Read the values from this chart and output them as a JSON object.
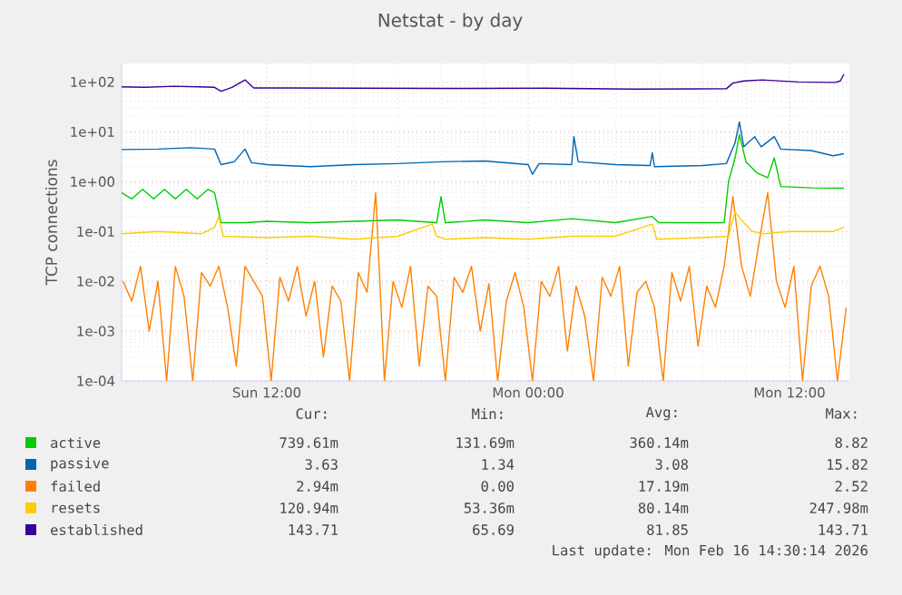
{
  "chart_data": {
    "type": "line",
    "title": "Netstat - by day",
    "ylabel": "TCP connections",
    "log": "y",
    "grid": true,
    "legend": "bottom",
    "marker": "none",
    "line_style": "solid",
    "xlim": [
      "2026-02-15T05:20",
      "2026-02-16T14:45"
    ],
    "xticks": [
      {
        "value": "2026-02-15T12:00",
        "label": "Sun 12:00"
      },
      {
        "value": "2026-02-16T00:00",
        "label": "Mon 00:00"
      },
      {
        "value": "2026-02-16T12:00",
        "label": "Mon 12:00"
      }
    ],
    "ylim": [
      0.0001,
      235
    ],
    "yticks": [
      {
        "value": 0.0001,
        "label": "1e-04"
      },
      {
        "value": 0.001,
        "label": "1e-03"
      },
      {
        "value": 0.01,
        "label": "1e-02"
      },
      {
        "value": 0.1,
        "label": "1e-01"
      },
      {
        "value": 1,
        "label": "1e+00"
      },
      {
        "value": 10,
        "label": "1e+01"
      },
      {
        "value": 100,
        "label": "1e+02"
      }
    ],
    "series": [
      {
        "name": "active",
        "color": "#00cc00",
        "x": [
          "2026-02-15T05:20",
          "2026-02-15T05:48",
          "2026-02-15T06:18",
          "2026-02-15T06:48",
          "2026-02-15T07:18",
          "2026-02-15T07:48",
          "2026-02-15T08:18",
          "2026-02-15T08:48",
          "2026-02-15T09:18",
          "2026-02-15T09:36",
          "2026-02-15T09:54",
          "2026-02-15T11:00",
          "2026-02-15T12:00",
          "2026-02-15T14:00",
          "2026-02-15T16:00",
          "2026-02-15T18:00",
          "2026-02-15T19:48",
          "2026-02-15T20:00",
          "2026-02-15T20:12",
          "2026-02-15T22:00",
          "2026-02-16T00:00",
          "2026-02-16T02:00",
          "2026-02-16T04:00",
          "2026-02-16T05:42",
          "2026-02-16T06:00",
          "2026-02-16T08:00",
          "2026-02-16T09:00",
          "2026-02-16T09:12",
          "2026-02-16T09:30",
          "2026-02-16T09:42",
          "2026-02-16T10:00",
          "2026-02-16T10:30",
          "2026-02-16T11:00",
          "2026-02-16T11:18",
          "2026-02-16T11:36",
          "2026-02-16T13:00",
          "2026-02-16T14:30"
        ],
        "values": [
          0.6,
          0.45,
          0.7,
          0.45,
          0.7,
          0.45,
          0.7,
          0.45,
          0.7,
          0.6,
          0.15,
          0.15,
          0.16,
          0.15,
          0.16,
          0.17,
          0.15,
          0.5,
          0.15,
          0.17,
          0.15,
          0.18,
          0.15,
          0.2,
          0.15,
          0.15,
          0.15,
          1.0,
          3.0,
          8.82,
          2.5,
          1.5,
          1.2,
          3.0,
          0.8,
          0.75,
          0.74
        ]
      },
      {
        "name": "passive",
        "color": "#0066b3",
        "x": [
          "2026-02-15T05:20",
          "2026-02-15T07:00",
          "2026-02-15T08:30",
          "2026-02-15T09:36",
          "2026-02-15T09:54",
          "2026-02-15T10:30",
          "2026-02-15T11:00",
          "2026-02-15T11:18",
          "2026-02-15T12:00",
          "2026-02-15T14:00",
          "2026-02-15T16:00",
          "2026-02-15T18:00",
          "2026-02-15T20:00",
          "2026-02-15T22:00",
          "2026-02-16T00:00",
          "2026-02-16T00:12",
          "2026-02-16T00:30",
          "2026-02-16T02:00",
          "2026-02-16T02:06",
          "2026-02-16T02:18",
          "2026-02-16T04:00",
          "2026-02-16T05:36",
          "2026-02-16T05:42",
          "2026-02-16T05:48",
          "2026-02-16T08:00",
          "2026-02-16T09:06",
          "2026-02-16T09:30",
          "2026-02-16T09:42",
          "2026-02-16T09:54",
          "2026-02-16T10:24",
          "2026-02-16T10:42",
          "2026-02-16T11:18",
          "2026-02-16T11:36",
          "2026-02-16T13:00",
          "2026-02-16T14:00",
          "2026-02-16T14:30"
        ],
        "values": [
          4.4,
          4.5,
          4.8,
          4.5,
          2.2,
          2.5,
          4.5,
          2.4,
          2.2,
          2.0,
          2.2,
          2.3,
          2.5,
          2.6,
          2.2,
          1.4,
          2.3,
          2.2,
          8.0,
          2.5,
          2.2,
          2.1,
          3.8,
          2.0,
          2.1,
          2.3,
          6,
          15.82,
          5,
          8,
          5,
          8,
          4.5,
          4.2,
          3.3,
          3.63
        ]
      },
      {
        "name": "failed",
        "color": "#ff8000",
        "x": [
          "2026-02-15T05:24",
          "2026-02-15T05:48",
          "2026-02-15T06:12",
          "2026-02-15T06:36",
          "2026-02-15T07:00",
          "2026-02-15T07:24",
          "2026-02-15T07:48",
          "2026-02-15T08:12",
          "2026-02-15T08:36",
          "2026-02-15T09:00",
          "2026-02-15T09:24",
          "2026-02-15T09:48",
          "2026-02-15T10:12",
          "2026-02-15T10:36",
          "2026-02-15T11:00",
          "2026-02-15T11:24",
          "2026-02-15T11:48",
          "2026-02-15T12:12",
          "2026-02-15T12:36",
          "2026-02-15T13:00",
          "2026-02-15T13:24",
          "2026-02-15T13:48",
          "2026-02-15T14:12",
          "2026-02-15T14:36",
          "2026-02-15T15:00",
          "2026-02-15T15:24",
          "2026-02-15T15:48",
          "2026-02-15T16:12",
          "2026-02-15T16:36",
          "2026-02-15T17:00",
          "2026-02-15T17:24",
          "2026-02-15T17:48",
          "2026-02-15T18:12",
          "2026-02-15T18:36",
          "2026-02-15T19:00",
          "2026-02-15T19:24",
          "2026-02-15T19:48",
          "2026-02-15T20:12",
          "2026-02-15T20:36",
          "2026-02-15T21:00",
          "2026-02-15T21:24",
          "2026-02-15T21:48",
          "2026-02-15T22:12",
          "2026-02-15T22:36",
          "2026-02-15T23:00",
          "2026-02-15T23:24",
          "2026-02-15T23:48",
          "2026-02-16T00:12",
          "2026-02-16T00:36",
          "2026-02-16T01:00",
          "2026-02-16T01:24",
          "2026-02-16T01:48",
          "2026-02-16T02:12",
          "2026-02-16T02:36",
          "2026-02-16T03:00",
          "2026-02-16T03:24",
          "2026-02-16T03:48",
          "2026-02-16T04:12",
          "2026-02-16T04:36",
          "2026-02-16T05:00",
          "2026-02-16T05:24",
          "2026-02-16T05:48",
          "2026-02-16T06:12",
          "2026-02-16T06:36",
          "2026-02-16T07:00",
          "2026-02-16T07:24",
          "2026-02-16T07:48",
          "2026-02-16T08:12",
          "2026-02-16T08:36",
          "2026-02-16T09:00",
          "2026-02-16T09:24",
          "2026-02-16T09:48",
          "2026-02-16T10:12",
          "2026-02-16T10:36",
          "2026-02-16T11:00",
          "2026-02-16T11:24",
          "2026-02-16T11:48",
          "2026-02-16T12:12",
          "2026-02-16T12:36",
          "2026-02-16T13:00",
          "2026-02-16T13:24",
          "2026-02-16T13:48",
          "2026-02-16T14:12",
          "2026-02-16T14:36"
        ],
        "values": [
          0.01,
          0.004,
          0.02,
          0.001,
          0.01,
          0.0001,
          0.02,
          0.005,
          0.0001,
          0.015,
          0.008,
          0.02,
          0.003,
          0.0002,
          0.02,
          0.01,
          0.005,
          0.0001,
          0.012,
          0.004,
          0.02,
          0.002,
          0.01,
          0.0003,
          0.008,
          0.004,
          0.0001,
          0.015,
          0.006,
          0.6,
          0.0001,
          0.01,
          0.003,
          0.02,
          0.0002,
          0.008,
          0.005,
          0.0001,
          0.012,
          0.006,
          0.02,
          0.001,
          0.009,
          0.0001,
          0.004,
          0.015,
          0.003,
          0.0001,
          0.01,
          0.005,
          0.02,
          0.0004,
          0.008,
          0.002,
          0.0001,
          0.012,
          0.005,
          0.02,
          0.0002,
          0.006,
          0.01,
          0.003,
          0.0001,
          0.015,
          0.004,
          0.02,
          0.0005,
          0.008,
          0.003,
          0.02,
          0.5,
          0.02,
          0.005,
          0.06,
          0.6,
          0.01,
          0.003,
          0.02,
          0.0001,
          0.008,
          0.02,
          0.005,
          0.0001,
          0.00294
        ]
      },
      {
        "name": "resets",
        "color": "#ffcc00",
        "x": [
          "2026-02-15T05:20",
          "2026-02-15T07:00",
          "2026-02-15T09:00",
          "2026-02-15T09:36",
          "2026-02-15T09:48",
          "2026-02-15T10:00",
          "2026-02-15T12:00",
          "2026-02-15T14:00",
          "2026-02-15T16:00",
          "2026-02-15T18:00",
          "2026-02-15T19:36",
          "2026-02-15T19:48",
          "2026-02-15T20:12",
          "2026-02-15T22:00",
          "2026-02-16T00:00",
          "2026-02-16T02:00",
          "2026-02-16T04:00",
          "2026-02-16T05:42",
          "2026-02-16T05:54",
          "2026-02-16T08:00",
          "2026-02-16T09:12",
          "2026-02-16T09:30",
          "2026-02-16T09:54",
          "2026-02-16T10:18",
          "2026-02-16T10:48",
          "2026-02-16T12:00",
          "2026-02-16T14:00",
          "2026-02-16T14:30"
        ],
        "values": [
          0.09,
          0.1,
          0.09,
          0.12,
          0.2,
          0.08,
          0.075,
          0.08,
          0.07,
          0.08,
          0.14,
          0.08,
          0.07,
          0.075,
          0.07,
          0.08,
          0.08,
          0.14,
          0.07,
          0.075,
          0.08,
          0.247,
          0.15,
          0.1,
          0.09,
          0.1,
          0.1,
          0.121
        ]
      },
      {
        "name": "established",
        "color": "#330099",
        "x": [
          "2026-02-15T05:20",
          "2026-02-15T06:24",
          "2026-02-15T07:42",
          "2026-02-15T08:54",
          "2026-02-15T09:36",
          "2026-02-15T09:54",
          "2026-02-15T10:24",
          "2026-02-15T11:00",
          "2026-02-15T11:24",
          "2026-02-15T13:06",
          "2026-02-15T16:24",
          "2026-02-15T20:36",
          "2026-02-16T00:45",
          "2026-02-16T04:54",
          "2026-02-16T09:06",
          "2026-02-16T09:24",
          "2026-02-16T09:54",
          "2026-02-16T10:45",
          "2026-02-16T12:24",
          "2026-02-16T14:06",
          "2026-02-16T14:20",
          "2026-02-16T14:30"
        ],
        "values": [
          80,
          78,
          82,
          80,
          78,
          65,
          78,
          110,
          76,
          76,
          75,
          74,
          75,
          72,
          73,
          95,
          105,
          110,
          100,
          98,
          105,
          143.71
        ]
      }
    ],
    "annotations": [
      "Cur:",
      "Min:",
      "Avg:",
      "Max:",
      "739.61m",
      "131.69m",
      "360.14m",
      "8.82",
      "3.63",
      "1.34",
      "3.08",
      "15.82",
      "2.94m",
      "0.00",
      "17.19m",
      "2.52",
      "120.94m",
      "53.36m",
      "80.14m",
      "247.98m",
      "143.71",
      "65.69",
      "81.85",
      "143.71",
      "Last update: Mon Feb 16 14:30:14 2026"
    ]
  }
}
